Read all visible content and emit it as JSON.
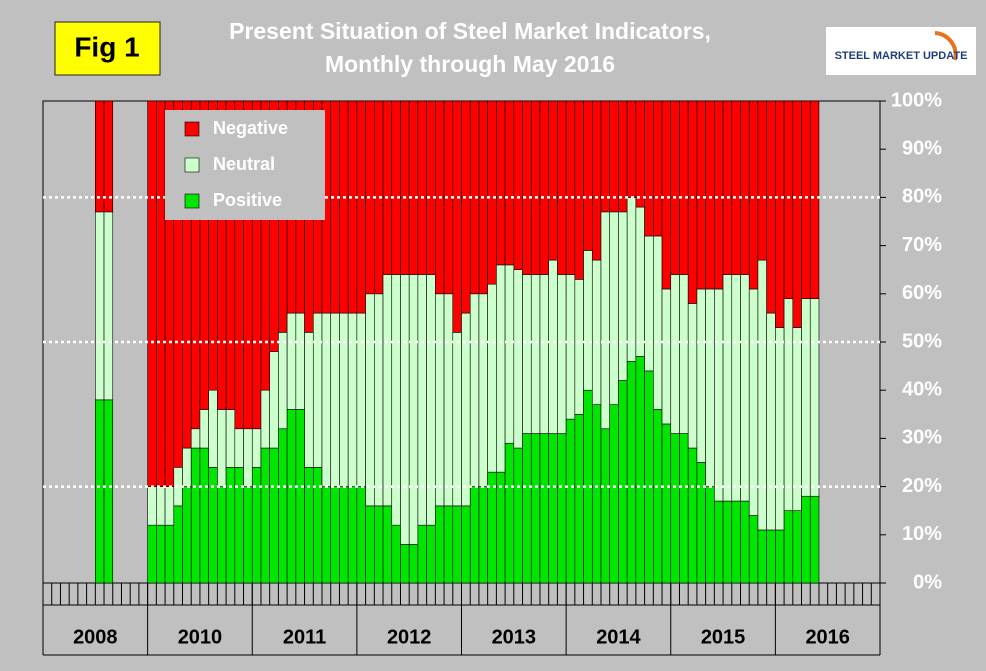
{
  "chart_data": {
    "type": "stacked_bar",
    "title": "Present Situation of Steel Market Indicators,",
    "subtitle": "Monthly through May 2016",
    "figure_label": "Fig 1",
    "logo_text": "STEEL MARKET UPDATE",
    "categories": [
      null,
      null,
      null,
      null,
      null,
      null,
      null,
      null,
      null,
      null,
      null,
      null,
      null,
      null,
      null,
      null,
      null,
      null,
      null,
      null,
      null,
      null,
      null,
      null,
      null,
      null,
      null,
      null,
      null,
      null,
      null,
      null,
      null,
      null,
      null,
      null,
      null,
      null,
      null,
      null,
      null,
      null,
      null,
      null,
      null,
      null,
      null,
      null,
      null,
      null,
      null,
      null,
      null,
      null,
      null,
      null,
      null,
      null,
      null,
      null,
      null,
      null,
      null,
      null,
      null,
      null,
      null,
      null,
      null,
      null,
      null,
      null,
      null,
      null,
      null,
      null,
      null,
      null,
      null,
      null,
      null,
      null,
      null,
      null,
      null,
      null,
      null,
      null,
      null,
      null,
      null,
      null,
      null,
      null,
      null,
      null
    ],
    "year_labels": [
      "2008",
      "2010",
      "2011",
      "2012",
      "2013",
      "2014",
      "2015",
      "2016"
    ],
    "series": [
      {
        "name": "Positive",
        "color": "#00e600",
        "values": [
          null,
          null,
          null,
          null,
          null,
          null,
          38,
          38,
          null,
          null,
          null,
          null,
          12,
          12,
          12,
          16,
          20,
          28,
          28,
          24,
          20,
          24,
          24,
          20,
          24,
          28,
          28,
          32,
          36,
          36,
          24,
          24,
          20,
          20,
          20,
          20,
          20,
          16,
          16,
          16,
          12,
          8,
          8,
          12,
          12,
          16,
          16,
          16,
          16,
          20,
          20,
          23,
          23,
          29,
          28,
          31,
          31,
          31,
          31,
          31,
          34,
          35,
          40,
          37,
          32,
          37,
          42,
          46,
          47,
          44,
          36,
          33,
          31,
          31,
          28,
          25,
          20,
          17,
          17,
          17,
          17,
          14,
          11,
          11,
          11,
          15,
          15,
          18,
          18,
          null,
          null,
          null,
          null,
          null,
          null,
          null
        ]
      },
      {
        "name": "Neutral",
        "color": "#ccffcc",
        "values": [
          null,
          null,
          null,
          null,
          null,
          null,
          39,
          39,
          null,
          null,
          null,
          null,
          8,
          8,
          8,
          8,
          8,
          4,
          8,
          16,
          16,
          12,
          8,
          12,
          8,
          12,
          20,
          20,
          20,
          20,
          28,
          32,
          36,
          36,
          36,
          36,
          36,
          44,
          44,
          48,
          52,
          56,
          56,
          52,
          52,
          44,
          44,
          36,
          40,
          40,
          40,
          39,
          43,
          37,
          37,
          33,
          33,
          33,
          36,
          33,
          30,
          28,
          29,
          30,
          45,
          40,
          35,
          34,
          31,
          28,
          36,
          28,
          33,
          33,
          30,
          36,
          41,
          44,
          47,
          47,
          47,
          47,
          56,
          45,
          42,
          44,
          38,
          41,
          41,
          null,
          null,
          null,
          null,
          null,
          null,
          null
        ]
      },
      {
        "name": "Negative",
        "color": "#ff0000",
        "values": [
          null,
          null,
          null,
          null,
          null,
          null,
          23,
          23,
          null,
          null,
          null,
          null,
          80,
          80,
          80,
          76,
          72,
          68,
          64,
          60,
          64,
          64,
          68,
          68,
          68,
          60,
          52,
          48,
          44,
          44,
          48,
          44,
          44,
          44,
          44,
          44,
          44,
          40,
          40,
          36,
          36,
          36,
          36,
          36,
          36,
          40,
          40,
          48,
          44,
          40,
          40,
          38,
          34,
          34,
          35,
          36,
          36,
          36,
          33,
          36,
          36,
          37,
          31,
          33,
          23,
          23,
          23,
          20,
          22,
          28,
          28,
          39,
          36,
          36,
          42,
          39,
          39,
          39,
          36,
          36,
          36,
          39,
          33,
          44,
          47,
          41,
          47,
          41,
          41,
          null,
          null,
          null,
          null,
          null,
          null,
          null
        ]
      }
    ],
    "ylim": [
      0,
      100
    ],
    "yticks": [
      {
        "value": 0,
        "label": "0%"
      },
      {
        "value": 10,
        "label": "10%"
      },
      {
        "value": 20,
        "label": "20%"
      },
      {
        "value": 30,
        "label": "30%"
      },
      {
        "value": 40,
        "label": "40%"
      },
      {
        "value": 50,
        "label": "50%"
      },
      {
        "value": 60,
        "label": "60%"
      },
      {
        "value": 70,
        "label": "70%"
      },
      {
        "value": 80,
        "label": "80%"
      },
      {
        "value": 90,
        "label": "90%"
      },
      {
        "value": 100,
        "label": "100%"
      }
    ],
    "reference_lines": [
      20,
      50,
      80
    ],
    "legend": "top-left"
  }
}
